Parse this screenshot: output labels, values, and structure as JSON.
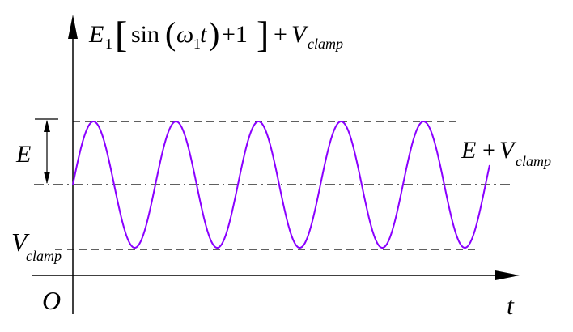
{
  "formula": {
    "coef": "E",
    "coef_sub": "1",
    "func": "sin",
    "omega": "ω",
    "omega_sub": "1",
    "var": "t",
    "plus_one": "+1",
    "plus": "+",
    "V": "V",
    "V_sub": "clamp"
  },
  "labels": {
    "amplitude": "E",
    "peak_E": "E",
    "peak_plus": "+",
    "peak_V": "V",
    "peak_V_sub": "clamp",
    "baseline_V": "V",
    "baseline_V_sub": "clamp",
    "origin": "O",
    "time_axis": "t"
  },
  "colors": {
    "waveform": "#8a00ff",
    "lines": "#000000"
  },
  "waveform": {
    "shape": "sine",
    "periods_shown": 5
  }
}
